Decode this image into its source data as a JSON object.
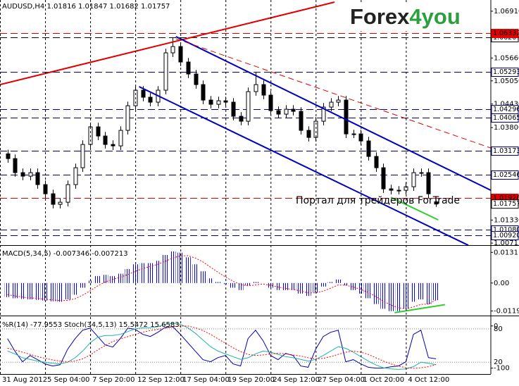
{
  "logo": {
    "part1": "Forex",
    "part2": "4you"
  },
  "chart_data": [
    {
      "type": "candlestick",
      "title": "AUDUSD,H4  1.01816 1.01847 1.01682 1.01757",
      "watermark": "Портал для трейдеров  ForTrade",
      "x": [
        1,
        2,
        3,
        4,
        5,
        6,
        7,
        8,
        9,
        10,
        11,
        12,
        13,
        14,
        15,
        16,
        17,
        18,
        19,
        20,
        21,
        22,
        23,
        24,
        25,
        26,
        27,
        28,
        29,
        30,
        31,
        32,
        33,
        34,
        35,
        36,
        37,
        38,
        39,
        40,
        41,
        42,
        43,
        44,
        45,
        46,
        47,
        48,
        49,
        50,
        51,
        52,
        53,
        54,
        55,
        56,
        57,
        58
      ],
      "open": [
        1.031,
        1.02973,
        1.02597,
        1.02503,
        1.02597,
        1.02277,
        1.02032,
        1.0175,
        1.01806,
        1.02277,
        1.02728,
        1.0335,
        1.03821,
        1.03576,
        1.0335,
        1.03312,
        1.03727,
        1.04385,
        1.048,
        1.04612,
        1.0448,
        1.048,
        1.05798,
        1.05967,
        1.05553,
        1.05233,
        1.0495,
        1.04536,
        1.04423,
        1.04517,
        1.0448,
        1.04103,
        1.03971,
        1.04762,
        1.0495,
        1.04668,
        1.04254,
        1.0416,
        1.04291,
        1.04235,
        1.03727,
        1.03538,
        1.03971,
        1.04348,
        1.0448,
        1.04536,
        1.03632,
        1.03632,
        1.03444,
        1.0303,
        1.02728,
        1.02164,
        1.02126,
        1.02126,
        1.0222,
        1.02597,
        1.02597,
        1.01816
      ],
      "high": [
        1.0321,
        1.03083,
        1.02707,
        1.02707,
        1.02707,
        1.02387,
        1.02142,
        1.01916,
        1.02387,
        1.02838,
        1.0346,
        1.03931,
        1.03931,
        1.03686,
        1.0346,
        1.03837,
        1.04495,
        1.0491,
        1.0491,
        1.04722,
        1.0491,
        1.05908,
        1.06207,
        1.06077,
        1.05663,
        1.05343,
        1.0506,
        1.04646,
        1.04627,
        1.04627,
        1.0459,
        1.04213,
        1.04872,
        1.05293,
        1.0506,
        1.04778,
        1.04364,
        1.04401,
        1.04401,
        1.04345,
        1.03837,
        1.04081,
        1.04458,
        1.0459,
        1.04646,
        1.04646,
        1.03742,
        1.03742,
        1.03554,
        1.0314,
        1.02838,
        1.02274,
        1.02236,
        1.0233,
        1.02707,
        1.02707,
        1.02707,
        1.01847
      ],
      "low": [
        1.02863,
        1.02487,
        1.02393,
        1.02393,
        1.02167,
        1.01922,
        1.0164,
        1.0164,
        1.01696,
        1.02167,
        1.02618,
        1.0324,
        1.03466,
        1.0324,
        1.03202,
        1.03202,
        1.03617,
        1.04275,
        1.04502,
        1.0437,
        1.0437,
        1.0469,
        1.05688,
        1.05443,
        1.05123,
        1.0484,
        1.04426,
        1.04313,
        1.04313,
        1.0437,
        1.03993,
        1.03861,
        1.03861,
        1.04652,
        1.04558,
        1.04144,
        1.0405,
        1.0405,
        1.04125,
        1.03617,
        1.03428,
        1.03428,
        1.03861,
        1.04238,
        1.0437,
        1.03522,
        1.03522,
        1.03334,
        1.0292,
        1.02618,
        1.02054,
        1.02016,
        1.02016,
        1.02016,
        1.0211,
        1.02487,
        1.01922,
        1.01682
      ],
      "close": [
        1.02973,
        1.02597,
        1.02503,
        1.02597,
        1.02277,
        1.02032,
        1.0175,
        1.01806,
        1.02277,
        1.02728,
        1.0335,
        1.03821,
        1.03576,
        1.0335,
        1.03312,
        1.03727,
        1.04385,
        1.048,
        1.04612,
        1.0448,
        1.048,
        1.05798,
        1.05967,
        1.05553,
        1.05233,
        1.0495,
        1.04536,
        1.04423,
        1.04517,
        1.0448,
        1.04103,
        1.03971,
        1.04762,
        1.0495,
        1.04668,
        1.04254,
        1.0416,
        1.04291,
        1.04235,
        1.03727,
        1.03538,
        1.03971,
        1.04348,
        1.0448,
        1.04536,
        1.03632,
        1.03632,
        1.03444,
        1.0303,
        1.02728,
        1.02164,
        1.02126,
        1.02126,
        1.0222,
        1.02597,
        1.02597,
        1.02032,
        1.01757
      ],
      "xlim": [
        0,
        65.3
      ],
      "xticks": [
        {
          "value": 0,
          "label": "31 Aug 2012"
        },
        {
          "value": 6,
          "label": "5 Sep 04:00"
        },
        {
          "value": 12,
          "label": "7 Sep 20:00"
        },
        {
          "value": 18,
          "label": "12 Sep 12:00"
        },
        {
          "value": 24,
          "label": "17 Sep 04:00"
        },
        {
          "value": 30,
          "label": "19 Sep 20:00"
        },
        {
          "value": 36,
          "label": "24 Sep 12:00"
        },
        {
          "value": 42,
          "label": "27 Sep 04:00"
        },
        {
          "value": 48,
          "label": "1 Oct 20:00"
        },
        {
          "value": 54,
          "label": "4 Oct 12:00"
        }
      ],
      "grid": true,
      "ylim": [
        1.0066,
        1.0721
      ],
      "yticks": [
        {
          "value": 1.0691,
          "label": "1.06910"
        },
        {
          "value": 1.0566,
          "label": "1.05660"
        },
        {
          "value": 1.0505,
          "label": "1.05050"
        },
        {
          "value": 1.0443,
          "label": "1.04430"
        },
        {
          "value": 1.038,
          "label": "1.03800"
        },
        {
          "value": 1.0133,
          "label": "1.01330"
        },
        1.00715
      ],
      "levels": [
        {
          "price": 1.06207,
          "color": "#000000",
          "filled": false
        },
        {
          "price": 1.06332,
          "color": "#e00000",
          "filled": true
        },
        {
          "price": 1.05293,
          "color": "#000080",
          "filled": false
        },
        {
          "price": 1.04296,
          "color": "#000080",
          "filled": false
        },
        {
          "price": 1.04065,
          "color": "#000080",
          "filled": false
        },
        {
          "price": 1.03173,
          "color": "#000080",
          "filled": false
        },
        {
          "price": 1.02546,
          "color": "#000080",
          "filled": false
        },
        {
          "price": 1.01926,
          "color": "#e00000",
          "filled": true
        },
        {
          "price": {
            "value": 1.0108,
            "label": "1.01080"
          },
          "color": "#000080",
          "filled": false
        },
        {
          "price": {
            "value": 1.0092,
            "label": "1.00920"
          },
          "color": "#000080",
          "filled": false
        }
      ],
      "lines": [
        {
          "color": "#e00000",
          "dashed": false,
          "width": 2,
          "x": [
            0,
            44.5
          ],
          "y": [
            1.0495,
            1.07154
          ]
        },
        {
          "color": "#0000c0",
          "dashed": false,
          "width": 2,
          "x": [
            23.4,
            65.3
          ],
          "y": [
            1.06231,
            1.02126
          ]
        },
        {
          "color": "#0000c0",
          "dashed": false,
          "width": 2,
          "x": [
            18.5,
            62.3
          ],
          "y": [
            1.04894,
            1.00657
          ]
        },
        {
          "color": "#e00000",
          "dashed": true,
          "width": 1,
          "x": [
            23.4,
            65.3
          ],
          "y": [
            1.06174,
            1.03256
          ]
        },
        {
          "color": "#32cd32",
          "dashed": false,
          "width": 2,
          "x": [
            52,
            58.3
          ],
          "y": [
            1.01937,
            1.01335
          ]
        }
      ]
    },
    {
      "type": "macd",
      "title": "MACD(5,34,5) -0.007346 -0.007213",
      "ylim": [
        -0.0139,
        0.0159
      ],
      "yticks": [
        0.0131,
        {
          "value": 0,
          "label": "0.00"
        },
        -0.01193
      ],
      "series": [
        {
          "kind": "histogram",
          "color": "#0000ff",
          "values": [
            -0.006,
            -0.0065,
            -0.0068,
            -0.007,
            -0.0072,
            -0.0075,
            -0.0078,
            -0.008,
            -0.007,
            -0.005,
            -0.002,
            0.001,
            0.003,
            0.0035,
            0.003,
            0.004,
            0.006,
            0.008,
            0.0085,
            0.0085,
            0.0095,
            0.012,
            0.0135,
            0.013,
            0.011,
            0.008,
            0.005,
            0.002,
            0.0005,
            -0.0005,
            -0.002,
            -0.003,
            -0.001,
            0.0005,
            0,
            -0.002,
            -0.003,
            -0.003,
            -0.003,
            -0.0045,
            -0.0055,
            -0.004,
            -0.0015,
            0.0005,
            0.0015,
            -0.001,
            -0.003,
            -0.0045,
            -0.0065,
            -0.009,
            -0.011,
            -0.012,
            -0.012,
            -0.011,
            -0.008,
            -0.007,
            -0.009,
            -0.007346
          ]
        },
        {
          "kind": "line",
          "dashed": true,
          "color": "#ff0000",
          "values": [
            -0.005,
            -0.0055,
            -0.006,
            -0.0063,
            -0.0066,
            -0.0069,
            -0.0072,
            -0.0075,
            -0.0074,
            -0.0067,
            -0.0052,
            -0.0033,
            -0.0012,
            0.0005,
            0.0015,
            0.0025,
            0.0036,
            0.005,
            0.0062,
            0.0071,
            0.008,
            0.0093,
            0.0107,
            0.0116,
            0.0117,
            0.0107,
            0.009,
            0.0068,
            0.0046,
            0.0026,
            0.0008,
            -0.0007,
            -0.0012,
            -0.0008,
            -0.0004,
            -0.001,
            -0.0017,
            -0.0023,
            -0.0027,
            -0.0034,
            -0.0042,
            -0.0042,
            -0.0035,
            -0.0022,
            -0.0008,
            -0.0009,
            -0.0017,
            -0.0027,
            -0.004,
            -0.0058,
            -0.0077,
            -0.0094,
            -0.0106,
            -0.011,
            -0.0102,
            -0.0091,
            -0.009,
            -0.007213
          ]
        }
      ],
      "lines": [
        {
          "color": "#32cd32",
          "dashed": false,
          "width": 2,
          "x": [
            52.5,
            59.2
          ],
          "y": [
            -0.01266,
            -0.00924
          ]
        }
      ]
    },
    {
      "type": "oscillator",
      "title": "%R(14) -77.9553  Stoch(34,5,13) 15.5472 15.6583",
      "ylim": [
        -1.3,
        102.6
      ],
      "yticks": [
        80,
        20
      ],
      "y2lim": [
        -114,
        23
      ],
      "y2ticks": [
        0,
        -100
      ],
      "grid": true,
      "series": [
        {
          "axis": "y2",
          "color": "#0000b0",
          "dashed": false,
          "values": [
            -30,
            -60,
            -85,
            -70,
            -80,
            -90,
            -95,
            -92,
            -55,
            -30,
            -10,
            -5,
            -25,
            -45,
            -50,
            -30,
            -5,
            -8,
            -20,
            -25,
            -15,
            -3,
            -2,
            -20,
            -40,
            -60,
            -80,
            -85,
            -75,
            -70,
            -90,
            -95,
            -30,
            -10,
            -35,
            -70,
            -80,
            -65,
            -70,
            -95,
            -98,
            -55,
            -25,
            -15,
            -10,
            -85,
            -80,
            -90,
            -98,
            -100,
            -100,
            -97,
            -95,
            -85,
            -20,
            -10,
            -75,
            -77.9553
          ]
        },
        {
          "color": "#20b2aa",
          "dashed": false,
          "values": [
            40,
            35,
            28,
            25,
            22,
            20,
            18,
            17,
            20,
            28,
            40,
            55,
            65,
            68,
            68,
            70,
            75,
            80,
            82,
            82,
            84,
            88,
            90,
            88,
            82,
            72,
            60,
            48,
            40,
            35,
            30,
            25,
            28,
            35,
            40,
            38,
            34,
            30,
            28,
            25,
            22,
            25,
            32,
            40,
            48,
            45,
            38,
            30,
            22,
            15,
            10,
            8,
            7,
            8,
            12,
            20,
            18,
            15.5472
          ]
        },
        {
          "color": "#ff0000",
          "dashed": true,
          "values": [
            45,
            42,
            38,
            34,
            30,
            27,
            24,
            22,
            21,
            22,
            26,
            33,
            42,
            50,
            57,
            62,
            66,
            70,
            74,
            77,
            79,
            81,
            84,
            85,
            85,
            82,
            77,
            70,
            62,
            54,
            46,
            39,
            34,
            32,
            33,
            35,
            36,
            35,
            33,
            31,
            28,
            26,
            27,
            30,
            34,
            38,
            40,
            38,
            34,
            28,
            22,
            17,
            13,
            10,
            9,
            10,
            12,
            15.6583
          ]
        }
      ]
    }
  ]
}
